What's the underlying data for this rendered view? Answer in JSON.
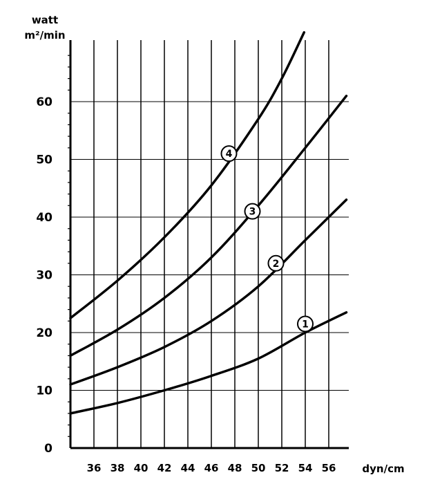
{
  "chart_data": {
    "type": "line",
    "ylabel_line1": "watt",
    "ylabel_line2": "m²/min",
    "xlabel": "dyn/cm",
    "xlim": [
      34,
      58
    ],
    "ylim": [
      0,
      70
    ],
    "x_ticks": [
      36,
      38,
      40,
      42,
      44,
      46,
      48,
      50,
      52,
      54,
      56
    ],
    "y_ticks": [
      0,
      10,
      20,
      30,
      40,
      50,
      60
    ],
    "major_h_lines": [
      20,
      30
    ],
    "grid": true,
    "legend": "none",
    "series": [
      {
        "name": "1",
        "points": [
          [
            34,
            6
          ],
          [
            38,
            7.8
          ],
          [
            42,
            10
          ],
          [
            46,
            12.5
          ],
          [
            50,
            15.5
          ],
          [
            54,
            20
          ],
          [
            57.5,
            23.5
          ]
        ]
      },
      {
        "name": "2",
        "points": [
          [
            34,
            11
          ],
          [
            38,
            14
          ],
          [
            42,
            17.5
          ],
          [
            46,
            22
          ],
          [
            50,
            28
          ],
          [
            54,
            36
          ],
          [
            57.5,
            43
          ]
        ]
      },
      {
        "name": "3",
        "points": [
          [
            34,
            16
          ],
          [
            38,
            20.5
          ],
          [
            42,
            26
          ],
          [
            46,
            33
          ],
          [
            50,
            42
          ],
          [
            54,
            52
          ],
          [
            57.5,
            61
          ]
        ]
      },
      {
        "name": "4",
        "points": [
          [
            34,
            22.5
          ],
          [
            38,
            29
          ],
          [
            42,
            36.5
          ],
          [
            46,
            45.5
          ],
          [
            50,
            57
          ],
          [
            52,
            64
          ],
          [
            53.9,
            72
          ]
        ]
      }
    ],
    "annotations": [
      {
        "label": "1",
        "x": 54,
        "y": 21.5
      },
      {
        "label": "2",
        "x": 51.5,
        "y": 32
      },
      {
        "label": "3",
        "x": 49.5,
        "y": 41
      },
      {
        "label": "4",
        "x": 47.5,
        "y": 51
      }
    ]
  }
}
